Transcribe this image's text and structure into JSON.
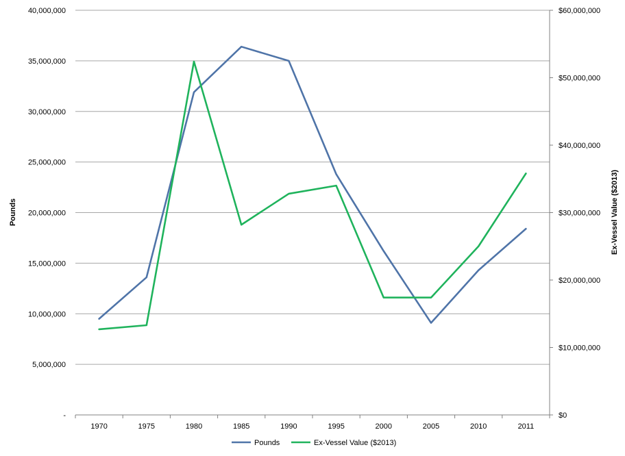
{
  "chart_data": {
    "type": "line",
    "categories": [
      "1970",
      "1975",
      "1980",
      "1985",
      "1990",
      "1995",
      "2000",
      "2005",
      "2010",
      "2011"
    ],
    "series": [
      {
        "name": "Pounds",
        "axis": "left",
        "color": "#4f74a8",
        "values": [
          9500000,
          13600000,
          31900000,
          36400000,
          35000000,
          23800000,
          16200000,
          9100000,
          14300000,
          18400000
        ]
      },
      {
        "name": "Ex-Vessel Value ($2013)",
        "axis": "right",
        "color": "#1fb35c",
        "values": [
          12700000,
          13300000,
          52400000,
          28200000,
          32800000,
          34000000,
          17400000,
          17400000,
          25000000,
          35800000
        ]
      }
    ],
    "ylabel": "Pounds",
    "ylim": [
      0,
      40000000
    ],
    "yticks": [
      "-",
      "5,000,000",
      "10,000,000",
      "15,000,000",
      "20,000,000",
      "25,000,000",
      "30,000,000",
      "35,000,000",
      "40,000,000"
    ],
    "y2label": "Ex-Vessel Value ($2013)",
    "y2lim": [
      0,
      60000000
    ],
    "y2ticks": [
      "$0",
      "$10,000,000",
      "$20,000,000",
      "$30,000,000",
      "$40,000,000",
      "$50,000,000",
      "$60,000,000"
    ],
    "grid": true,
    "legend_position": "bottom"
  }
}
